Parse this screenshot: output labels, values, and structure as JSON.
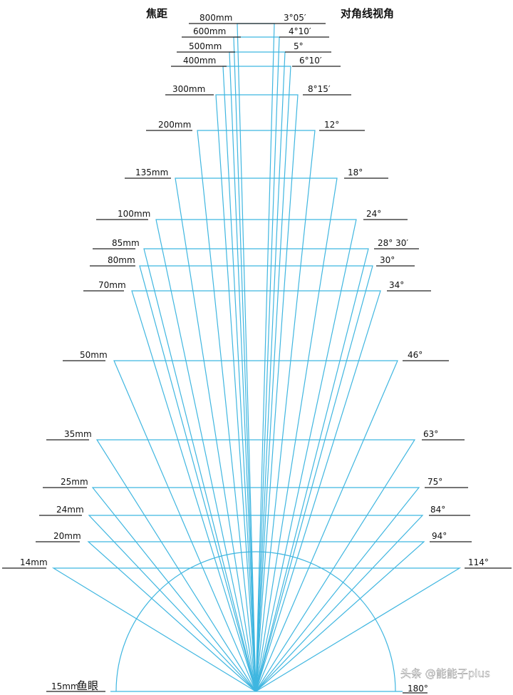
{
  "headers": {
    "left": "焦距",
    "right": "对角线视角"
  },
  "lenses": [
    {
      "focal": "800mm",
      "angle": "3°05′"
    },
    {
      "focal": "600mm",
      "angle": "4°10′"
    },
    {
      "focal": "500mm",
      "angle": "5°"
    },
    {
      "focal": "400mm",
      "angle": "6°10′"
    },
    {
      "focal": "300mm",
      "angle": "8°15′"
    },
    {
      "focal": "200mm",
      "angle": "12°"
    },
    {
      "focal": "135mm",
      "angle": "18°"
    },
    {
      "focal": "100mm",
      "angle": "24°"
    },
    {
      "focal": "85mm",
      "angle": "28° 30′"
    },
    {
      "focal": "80mm",
      "angle": "30°"
    },
    {
      "focal": "70mm",
      "angle": "34°"
    },
    {
      "focal": "50mm",
      "angle": "46°"
    },
    {
      "focal": "35mm",
      "angle": "63°"
    },
    {
      "focal": "25mm",
      "angle": "75°"
    },
    {
      "focal": "24mm",
      "angle": "84°"
    },
    {
      "focal": "20mm",
      "angle": "94°"
    },
    {
      "focal": "14mm",
      "angle": "114°"
    }
  ],
  "fisheye": {
    "focal": "15mm",
    "name": "鱼眼",
    "angle": "180°"
  },
  "watermark": "头条 @能能子plus",
  "colors": {
    "ray": "#3fb6e0",
    "underline": "#222222",
    "text": "#111111"
  }
}
